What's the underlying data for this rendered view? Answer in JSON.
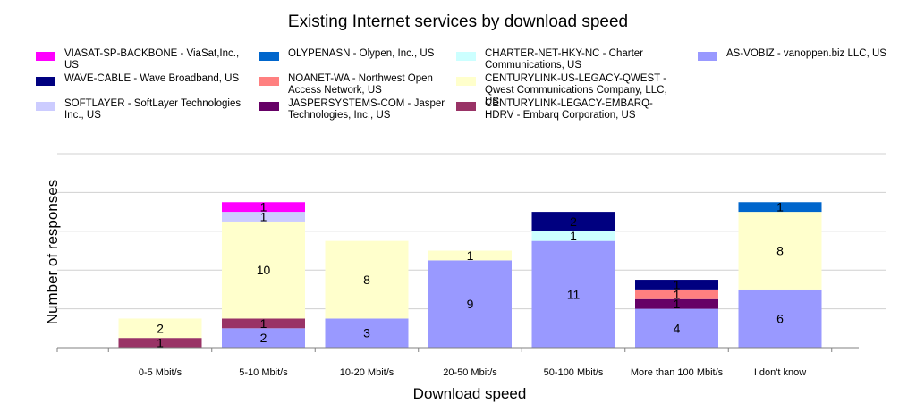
{
  "chart_data": {
    "type": "bar",
    "stacked": true,
    "title": "Existing Internet services by download speed",
    "xlabel": "Download speed",
    "ylabel": "Number of responses",
    "ylim": [
      0,
      20
    ],
    "grid": true,
    "legend_position": "top",
    "categories": [
      "0-5 Mbit/s",
      "5-10 Mbit/s",
      "10-20 Mbit/s",
      "20-50 Mbit/s",
      "50-100 Mbit/s",
      "More than 100 Mbit/s",
      "I don't know"
    ],
    "series": [
      {
        "name": "AS-VOBIZ - vanoppen.biz LLC, US",
        "color": "#9999ff",
        "values": [
          0,
          2,
          3,
          9,
          11,
          4,
          6
        ]
      },
      {
        "name": "CENTURYLINK-LEGACY-EMBARQ-HDRV - Embarq Corporation, US",
        "color": "#993366",
        "values": [
          1,
          1,
          0,
          0,
          0,
          0,
          0
        ]
      },
      {
        "name": "CENTURYLINK-US-LEGACY-QWEST - Qwest Communications Company, LLC, US",
        "color": "#ffffcc",
        "values": [
          2,
          10,
          8,
          1,
          0,
          0,
          8
        ]
      },
      {
        "name": "JASPERSYSTEMS-COM - Jasper Technologies, Inc., US",
        "color": "#660066",
        "values": [
          0,
          0,
          0,
          0,
          0,
          1,
          0
        ]
      },
      {
        "name": "NOANET-WA - Northwest Open Access Network, US",
        "color": "#ff8080",
        "values": [
          0,
          0,
          0,
          0,
          0,
          1,
          0
        ]
      },
      {
        "name": "CHARTER-NET-HKY-NC - Charter Communications, US",
        "color": "#ccffff",
        "values": [
          0,
          0,
          0,
          0,
          1,
          0,
          0
        ]
      },
      {
        "name": "WAVE-CABLE - Wave Broadband, US",
        "color": "#000080",
        "values": [
          0,
          0,
          0,
          0,
          2,
          1,
          0
        ]
      },
      {
        "name": "OLYPENASN - Olypen, Inc., US",
        "color": "#0066cc",
        "values": [
          0,
          0,
          0,
          0,
          0,
          0,
          1
        ]
      },
      {
        "name": "SOFTLAYER - SoftLayer Technologies Inc., US",
        "color": "#ccccff",
        "values": [
          0,
          1,
          0,
          0,
          0,
          0,
          0
        ]
      },
      {
        "name": "VIASAT-SP-BACKBONE - ViaSat,Inc., US",
        "color": "#ff00ff",
        "values": [
          0,
          1,
          0,
          0,
          0,
          0,
          0
        ]
      }
    ],
    "legend_order": [
      9,
      6,
      8,
      7,
      4,
      3,
      5,
      2,
      1,
      0
    ]
  }
}
